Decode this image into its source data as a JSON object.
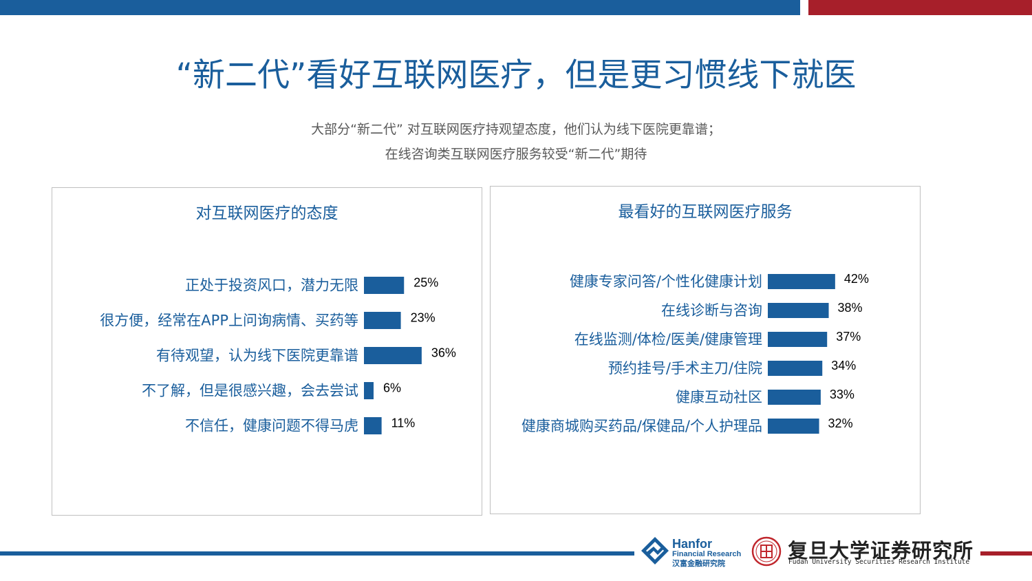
{
  "header": {
    "title": "“新二代”看好互联网医疗，但是更习惯线下就医",
    "subtitle_line1": "大部分“新二代” 对互联网医疗持观望态度，他们认为线下医院更靠谱；",
    "subtitle_line2": "在线咨询类互联网医疗服务较受“新二代”期待"
  },
  "colors": {
    "brand_blue": "#1a5e9c",
    "brand_red": "#a71f2a",
    "bar_blue": "#1a5e9c"
  },
  "chart_data": [
    {
      "type": "bar",
      "orientation": "horizontal",
      "title": "对互联网医疗的态度",
      "categories": [
        "正处于投资风口，潜力无限",
        "很方便，经常在APP上问询病情、买药等",
        "有待观望，认为线下医院更靠谱",
        "不了解，但是很感兴趣，会去尝试",
        "不信任，健康问题不得马虎"
      ],
      "values": [
        25,
        23,
        36,
        6,
        11
      ],
      "value_labels": [
        "25%",
        "23%",
        "36%",
        "6%",
        "11%"
      ],
      "unit": "%",
      "xlim": [
        0,
        100
      ],
      "grid": false,
      "legend": "none"
    },
    {
      "type": "bar",
      "orientation": "horizontal",
      "title": "最看好的互联网医疗服务",
      "categories": [
        "健康专家问答/个性化健康计划",
        "在线诊断与咨询",
        "在线监测/体检/医美/健康管理",
        "预约挂号/手术主刀/住院",
        "健康互动社区",
        "健康商城购买药品/保健品/个人护理品"
      ],
      "values": [
        42,
        38,
        37,
        34,
        33,
        32
      ],
      "value_labels": [
        "42%",
        "38%",
        "37%",
        "34%",
        "33%",
        "32%"
      ],
      "unit": "%",
      "xlim": [
        0,
        100
      ],
      "grid": false,
      "legend": "none"
    }
  ],
  "footer": {
    "hanfor_name": "Hanfor",
    "hanfor_sub": "Financial Research",
    "hanfor_cn": "汉富金融研究院",
    "fudan_cn": "复旦大学证券研究所",
    "fudan_en": "Fudan University Securities Research Institute"
  }
}
